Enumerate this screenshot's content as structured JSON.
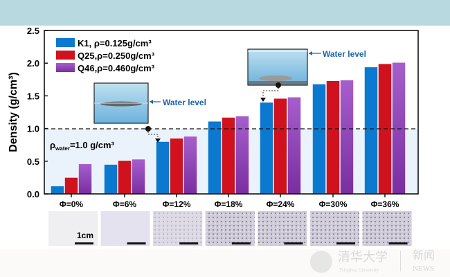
{
  "chart_data": {
    "type": "bar",
    "ylabel": "Density (g/cm³)",
    "ylim": [
      0,
      2.5
    ],
    "yticks": [
      "0.0",
      "0.5",
      "1.0",
      "1.5",
      "2.0",
      "2.5"
    ],
    "categories": [
      "Φ=0%",
      "Φ=6%",
      "Φ=12%",
      "Φ=18%",
      "Φ=24%",
      "Φ=30%",
      "Φ=36%"
    ],
    "series": [
      {
        "name": "K1,  ρ=0.125g/cm³",
        "color": "#0b79d0",
        "values": [
          0.12,
          0.45,
          0.8,
          1.11,
          1.4,
          1.68,
          1.94
        ]
      },
      {
        "name": "Q25,ρ=0.250g/cm³",
        "color": "#d0121f",
        "values": [
          0.25,
          0.51,
          0.85,
          1.17,
          1.46,
          1.73,
          1.99
        ]
      },
      {
        "name": "Q46,ρ=0.460g/cm³",
        "color": "#9a4fc0",
        "values": [
          0.46,
          0.53,
          0.88,
          1.19,
          1.48,
          1.74,
          2.01
        ]
      }
    ],
    "reference_line": {
      "value": 1.0,
      "label_main": "ρ",
      "label_sub": "water",
      "label_rest": "=1.0 g/cm³"
    },
    "annotations": [
      "Water level",
      "Water level"
    ],
    "scale_bar_label": "1cm",
    "legend": "top-left",
    "grid": false
  },
  "watermark": {
    "name": "清华大学",
    "sub": "Tsinghua University",
    "news_cn": "新闻",
    "news_en": "NEWS"
  }
}
